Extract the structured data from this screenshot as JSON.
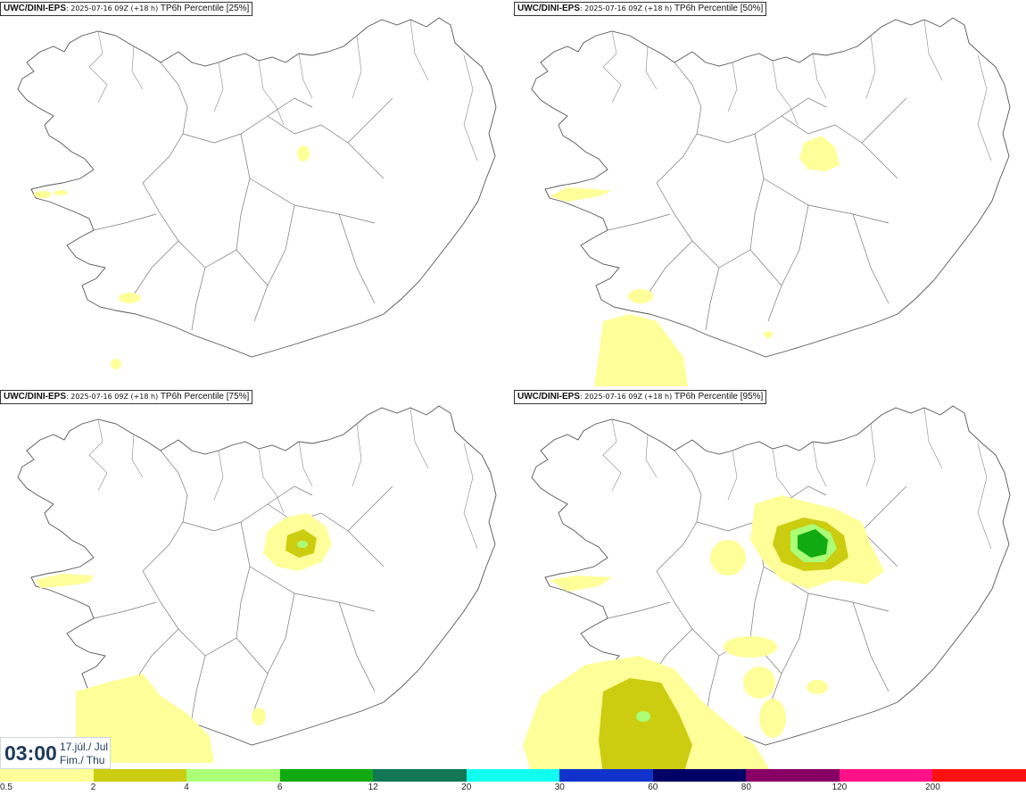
{
  "panels": [
    {
      "model": "UWC/DINI-EPS",
      "run": ": 2025-07-16 09Z (+18 h)",
      "field": " TP6h Percentile [25%]"
    },
    {
      "model": "UWC/DINI-EPS",
      "run": ": 2025-07-16 09Z (+18 h)",
      "field": " TP6h Percentile [50%]"
    },
    {
      "model": "UWC/DINI-EPS",
      "run": ": 2025-07-16 09Z (+18 h)",
      "field": " TP6h Percentile [75%]"
    },
    {
      "model": "UWC/DINI-EPS",
      "run": ": 2025-07-16 09Z (+18 h)",
      "field": " TP6h Percentile [95%]"
    }
  ],
  "valid_time": {
    "time": "03:00",
    "date": "17.júl./ Jul",
    "weekday": "Fim./ Thu"
  },
  "legend": {
    "colors": [
      "#ffff99",
      "#cccc11",
      "#aaff77",
      "#11aa11",
      "#117755",
      "#11ffee",
      "#1133cc",
      "#000066",
      "#880066",
      "#ff1188",
      "#ff1111"
    ],
    "ticks": [
      "0.5",
      "2",
      "4",
      "6",
      "12",
      "20",
      "30",
      "60",
      "80",
      "120",
      "200"
    ]
  }
}
